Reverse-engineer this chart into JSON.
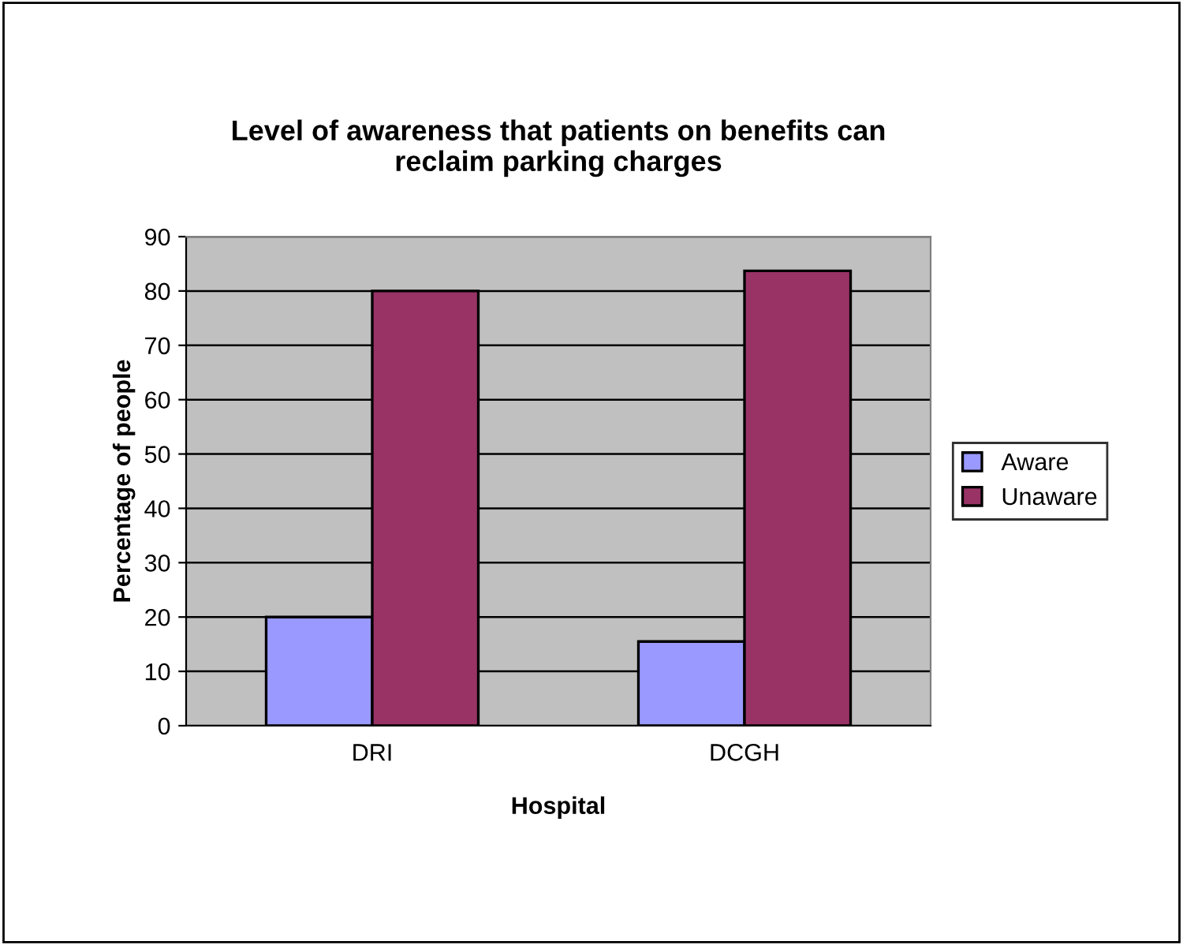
{
  "chart_data": {
    "type": "bar",
    "title": "Level of awareness that patients on benefits can\nreclaim parking charges",
    "xlabel": "Hospital",
    "ylabel": "Percentage of people",
    "categories": [
      "DRI",
      "DCGH"
    ],
    "series": [
      {
        "name": "Aware",
        "color": "#9999ff",
        "values": [
          20,
          15.5
        ]
      },
      {
        "name": "Unaware",
        "color": "#993366",
        "values": [
          80,
          83.7
        ]
      }
    ],
    "ylim": [
      0,
      90
    ],
    "yticks": [
      0,
      10,
      20,
      30,
      40,
      50,
      60,
      70,
      80,
      90
    ],
    "grid": "y",
    "legend": "right"
  }
}
